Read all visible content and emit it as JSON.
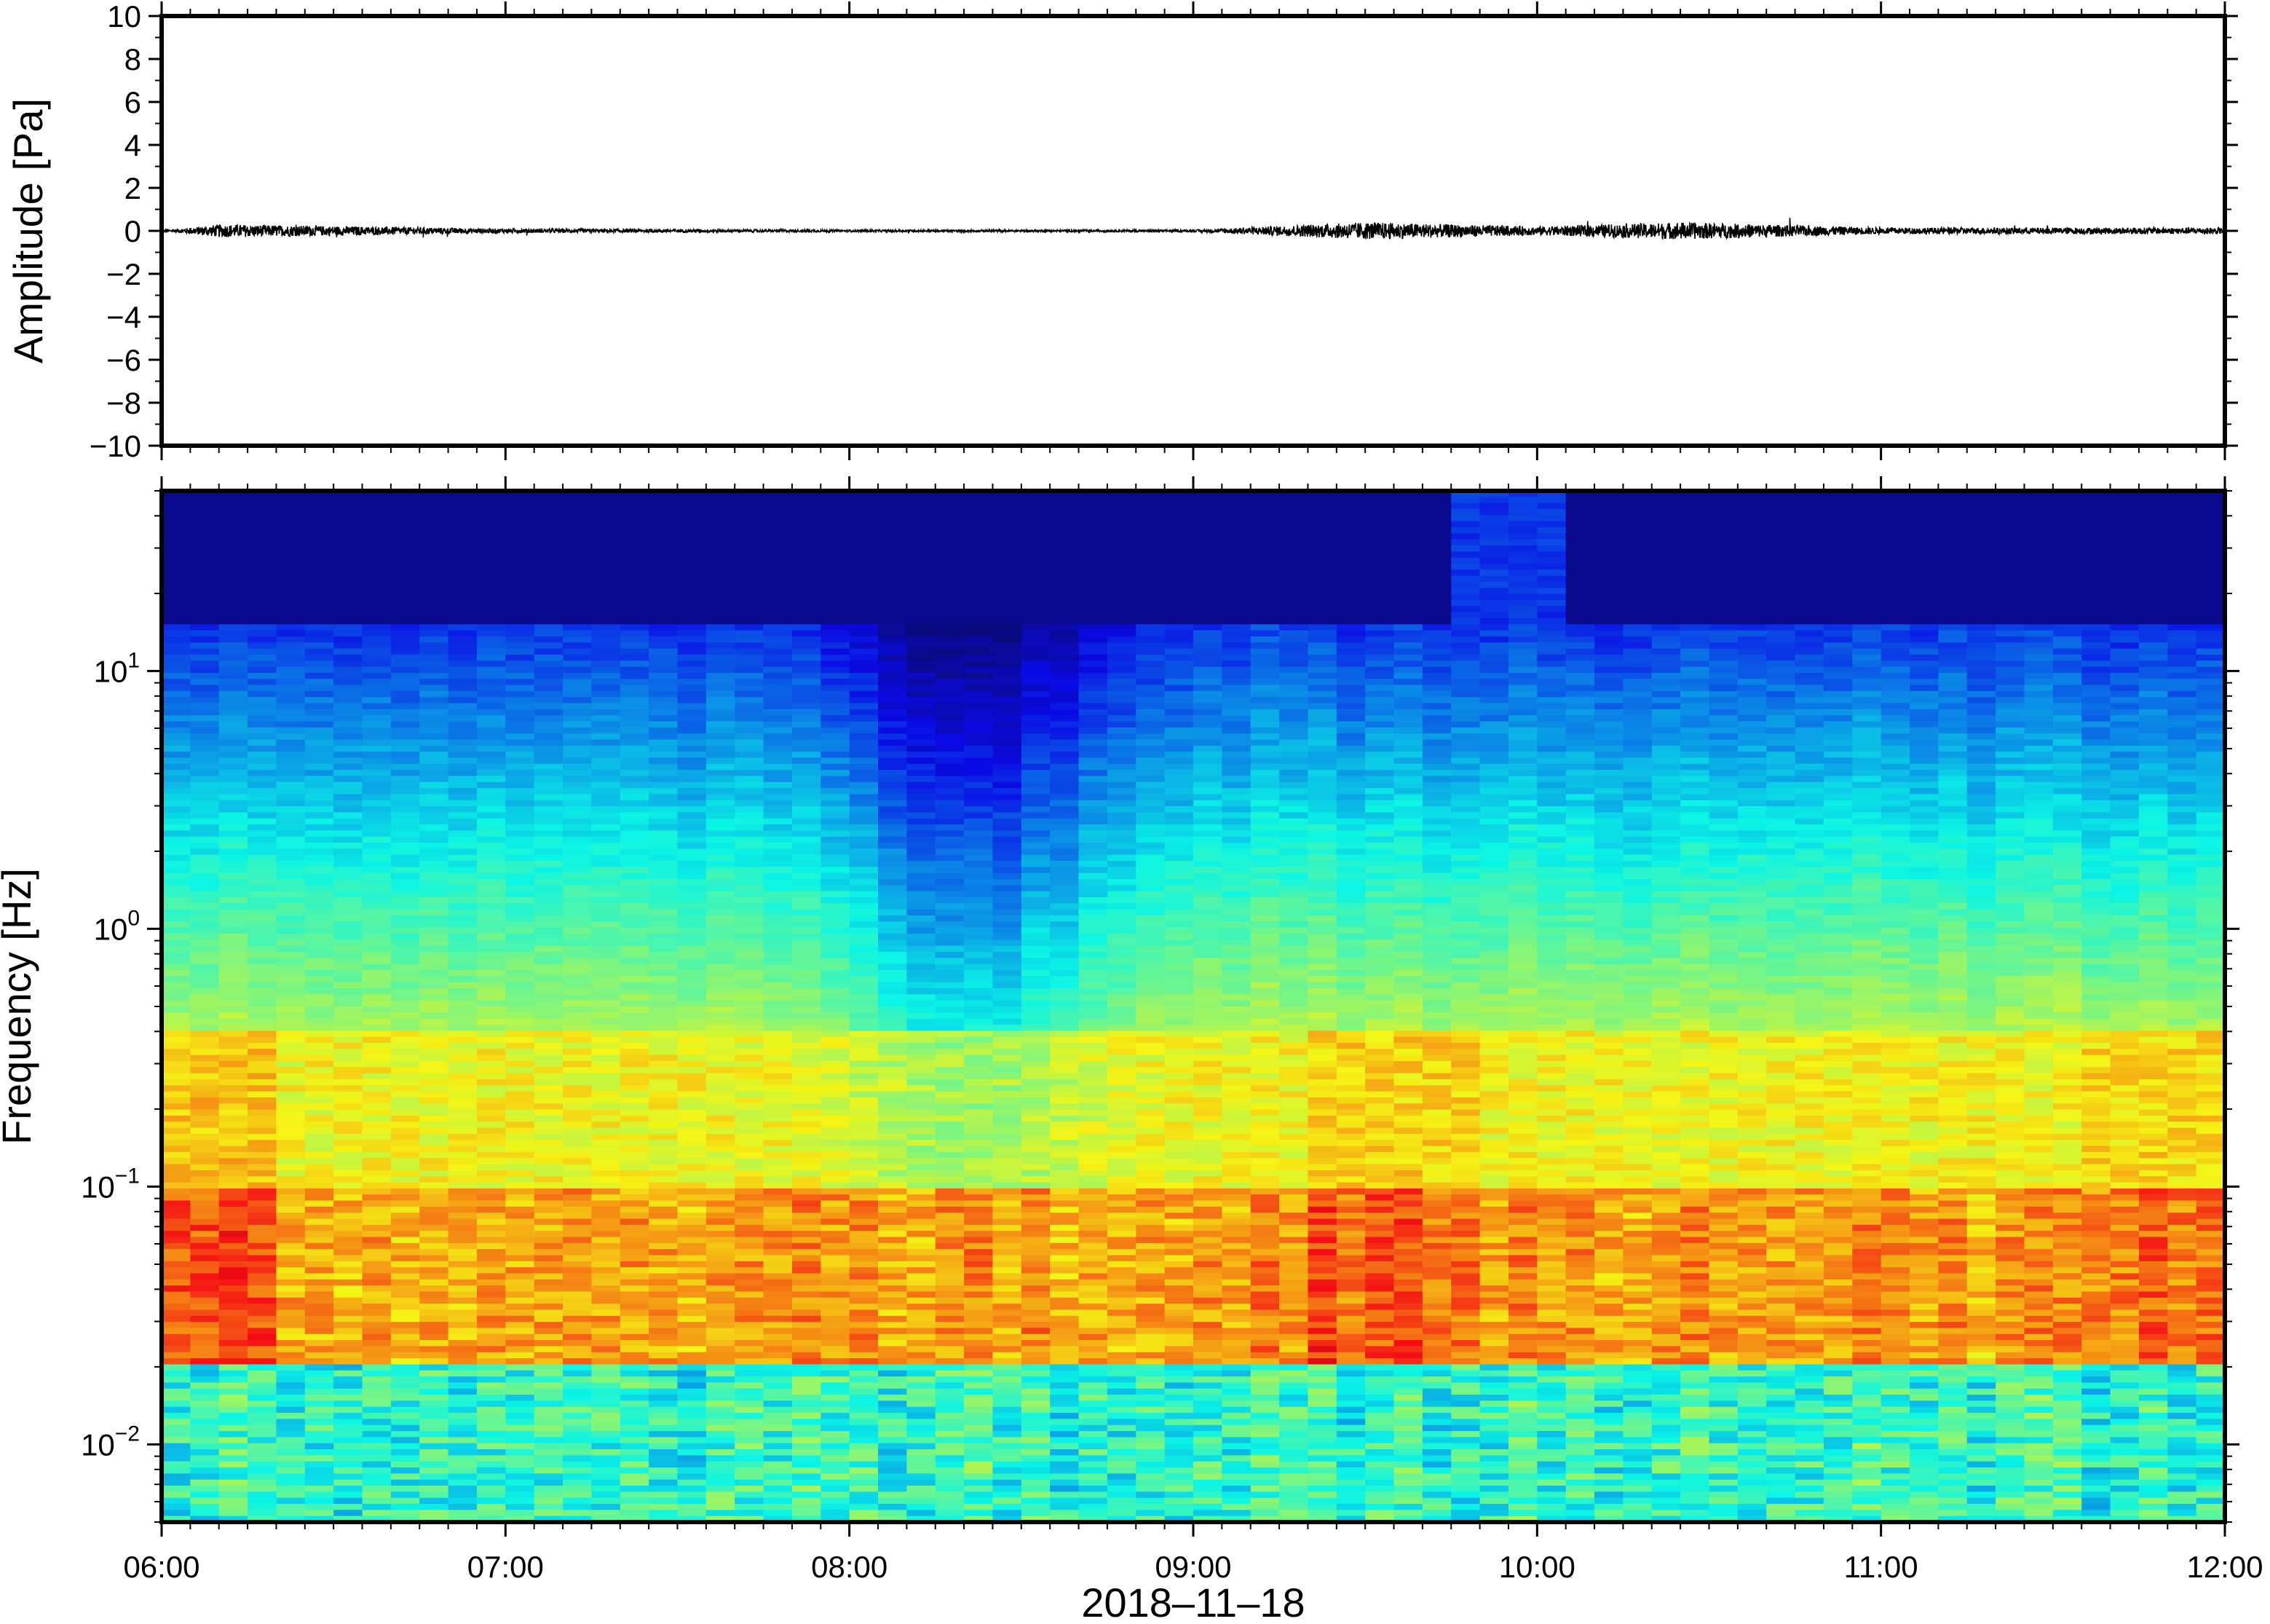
{
  "chart_data": [
    {
      "type": "line",
      "title": "",
      "xlabel": "",
      "ylabel": "Amplitude [Pa]",
      "ylim": [
        -10,
        10
      ],
      "yticks": [
        "10",
        "8",
        "6",
        "4",
        "2",
        "0",
        "−2",
        "−4",
        "−6",
        "−8",
        "−10"
      ],
      "ytick_values": [
        10,
        8,
        6,
        4,
        2,
        0,
        -2,
        -4,
        -6,
        -8,
        -10
      ],
      "xlim": [
        "06:00",
        "12:00"
      ],
      "grid": false,
      "series": [
        {
          "color": "#000000",
          "description_points": [
            {
              "x": "06:00",
              "y": 0.0
            },
            {
              "x": "06:10",
              "y": 0.3
            },
            {
              "x": "07:00",
              "y": 0.1
            },
            {
              "x": "08:00",
              "y": 0.05
            },
            {
              "x": "09:00",
              "y": 0.05
            },
            {
              "x": "09:30",
              "y": 0.4
            },
            {
              "x": "10:00",
              "y": 0.2
            },
            {
              "x": "10:25",
              "y": 0.4
            },
            {
              "x": "11:00",
              "y": 0.15
            },
            {
              "x": "12:00",
              "y": 0.15
            }
          ]
        }
      ]
    },
    {
      "type": "heatmap",
      "title": "",
      "xlabel": "2018–11–18",
      "ylabel": "Frequency [Hz]",
      "yscale": "log",
      "ylim": [
        0.005,
        50
      ],
      "yticks": [
        {
          "value": 0.01,
          "base": "10",
          "exp": "−2"
        },
        {
          "value": 0.1,
          "base": "10",
          "exp": "−1"
        },
        {
          "value": 1,
          "base": "10",
          "exp": "0"
        },
        {
          "value": 10,
          "base": "10",
          "exp": "1"
        }
      ],
      "xticks": [
        "06:00",
        "07:00",
        "08:00",
        "09:00",
        "10:00",
        "11:00",
        "12:00"
      ],
      "colormap": "jet",
      "colors": {
        "low": "#0b0a78",
        "mid_low": "#2f7be0",
        "mid": "#5fe0e8",
        "mid_high": "#d8f29a",
        "high": "#f79a52"
      },
      "features": {
        "dark_blue_top_band_until_hz": 15,
        "low_power_dip_time": "08:20",
        "high_power_intervals": [
          "06:00-06:20",
          "09:20-09:45",
          "11:40-12:00"
        ],
        "broadband_event_time": "09:45-10:05"
      }
    }
  ]
}
